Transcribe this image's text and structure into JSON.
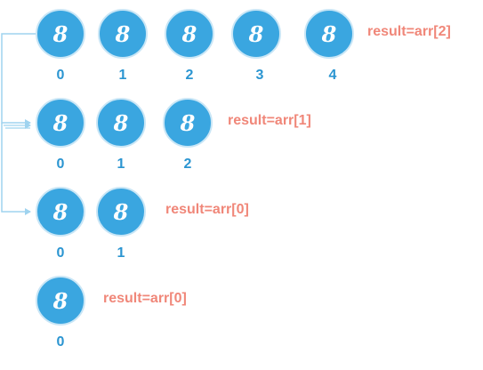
{
  "colors": {
    "node_fill": "#3aa6e0",
    "node_border": "#c9e6f6",
    "index_text": "#2b95d1",
    "result_text": "#f08779",
    "connector": "#9fd3ef"
  },
  "rows": [
    {
      "nodes": [
        {
          "value": "8",
          "index": "0"
        },
        {
          "value": "8",
          "index": "1"
        },
        {
          "value": "8",
          "index": "2"
        },
        {
          "value": "8",
          "index": "3"
        },
        {
          "value": "8",
          "index": "4"
        }
      ],
      "result": "result=arr[2]"
    },
    {
      "nodes": [
        {
          "value": "8",
          "index": "0"
        },
        {
          "value": "8",
          "index": "1"
        },
        {
          "value": "8",
          "index": "2"
        }
      ],
      "result": "result=arr[1]"
    },
    {
      "nodes": [
        {
          "value": "8",
          "index": "0"
        },
        {
          "value": "8",
          "index": "1"
        }
      ],
      "result": "result=arr[0]"
    },
    {
      "nodes": [
        {
          "value": "8",
          "index": "0"
        }
      ],
      "result": "result=arr[0]"
    }
  ]
}
